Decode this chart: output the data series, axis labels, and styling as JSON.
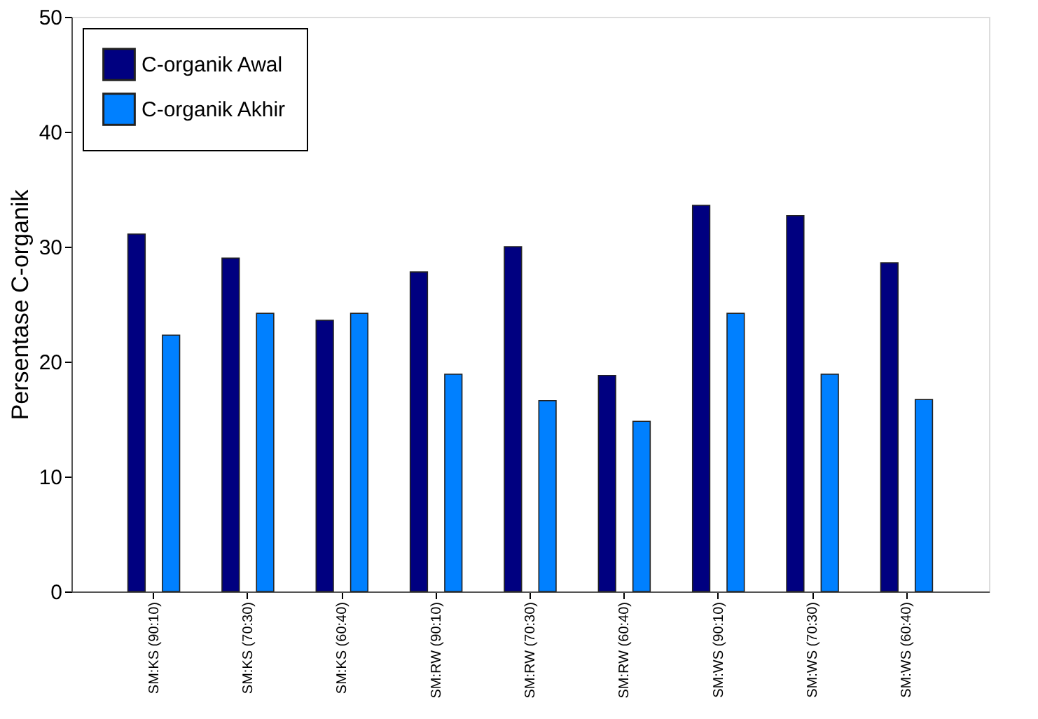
{
  "chart_data": {
    "type": "bar",
    "ylabel": "Persentase C-organik",
    "categories": [
      "SM:KS (90:10)",
      "SM:KS (70:30)",
      "SM:KS (60:40)",
      "SM:RW (90:10)",
      "SM:RW (70:30)",
      "SM:RW (60:40)",
      "SM:WS (90:10)",
      "SM:WS (70:30)",
      "SM:WS (60:40)"
    ],
    "series": [
      {
        "name": "C-organik Awal",
        "color": "#000080",
        "values": [
          31.1,
          29.0,
          23.6,
          27.8,
          30.0,
          18.8,
          33.6,
          32.7,
          28.6
        ]
      },
      {
        "name": "C-organik Akhir",
        "color": "#0080ff",
        "values": [
          22.3,
          24.2,
          24.2,
          18.9,
          16.6,
          14.8,
          24.2,
          18.9,
          16.7
        ]
      }
    ],
    "ylim": [
      0,
      50
    ],
    "yticks": [
      0,
      10,
      20,
      30,
      40,
      50
    ],
    "grid": false,
    "legend": "top left"
  }
}
